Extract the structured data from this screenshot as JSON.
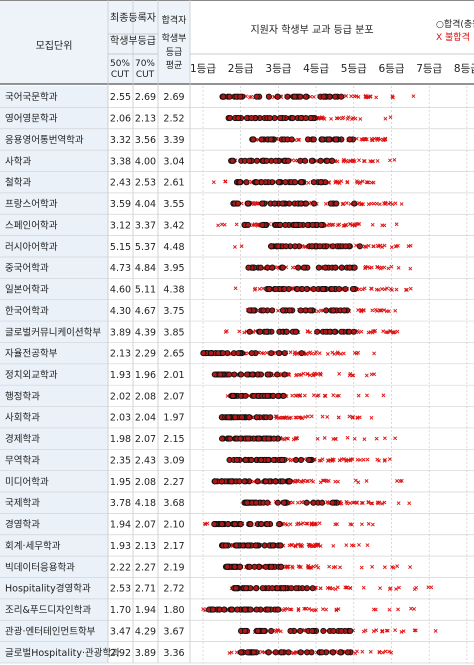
{
  "header": {
    "dept_label": "모집단위",
    "final_reg_label": "최종등록자",
    "final_reg_sub": "학생부등급",
    "cut50": [
      "50%",
      "CUT"
    ],
    "cut70": [
      "70%",
      "CUT"
    ],
    "pass_avg": [
      "합격자",
      "학생부",
      "등급",
      "평균"
    ],
    "dist_title": "지원자 학생부 교과 등급 분포",
    "legend_pass": "○합격(충원",
    "legend_fail": "X 불합격"
  },
  "chart_data": {
    "type": "scatter",
    "title": "지원자 학생부 교과 등급 분포",
    "x_ticks": [
      "1등급",
      "2등급",
      "3등급",
      "4등급",
      "5등급",
      "6등급",
      "7등급",
      "8등급"
    ],
    "xlim": [
      0.8,
      8.1
    ],
    "colors": {
      "pass": "#111111",
      "fail": "#e01010",
      "fill_pass": "#b01818",
      "row_alt": "#eef3f9"
    },
    "rows": [
      {
        "dept": "국어국문학과",
        "cut50": "2.55",
        "cut70": "2.69",
        "avg": "2.69",
        "pass_range": [
          1.5,
          4.7
        ],
        "fail_range": [
          1.7,
          6.6
        ]
      },
      {
        "dept": "영어영문학과",
        "cut50": "2.06",
        "cut70": "2.13",
        "avg": "2.52",
        "pass_range": [
          1.6,
          4.0
        ],
        "fail_range": [
          1.7,
          6.0
        ]
      },
      {
        "dept": "응용영어통번역학과",
        "cut50": "3.32",
        "cut70": "3.56",
        "avg": "3.39",
        "pass_range": [
          2.3,
          5.0
        ],
        "fail_range": [
          2.4,
          6.4
        ]
      },
      {
        "dept": "사학과",
        "cut50": "3.38",
        "cut70": "4.00",
        "avg": "3.04",
        "pass_range": [
          1.7,
          4.5
        ],
        "fail_range": [
          1.8,
          6.1
        ]
      },
      {
        "dept": "철학과",
        "cut50": "2.43",
        "cut70": "2.53",
        "avg": "2.61",
        "pass_range": [
          1.9,
          4.4
        ],
        "fail_range": [
          1.0,
          5.9
        ]
      },
      {
        "dept": "프랑스어학과",
        "cut50": "3.59",
        "cut70": "4.04",
        "avg": "3.55",
        "pass_range": [
          1.8,
          5.1
        ],
        "fail_range": [
          2.3,
          6.5
        ]
      },
      {
        "dept": "스페인어학과",
        "cut50": "3.12",
        "cut70": "3.37",
        "avg": "3.42",
        "pass_range": [
          2.1,
          4.3
        ],
        "fail_range": [
          1.4,
          6.4
        ]
      },
      {
        "dept": "러시아어학과",
        "cut50": "5.15",
        "cut70": "5.37",
        "avg": "4.48",
        "pass_range": [
          2.8,
          5.2
        ],
        "fail_range": [
          1.5,
          6.6
        ]
      },
      {
        "dept": "중국어학과",
        "cut50": "4.73",
        "cut70": "4.84",
        "avg": "3.95",
        "pass_range": [
          2.2,
          5.1
        ],
        "fail_range": [
          2.2,
          6.5
        ]
      },
      {
        "dept": "일본어학과",
        "cut50": "4.60",
        "cut70": "5.11",
        "avg": "4.38",
        "pass_range": [
          2.7,
          5.1
        ],
        "fail_range": [
          1.7,
          6.6
        ]
      },
      {
        "dept": "한국어학과",
        "cut50": "4.30",
        "cut70": "4.67",
        "avg": "3.75",
        "pass_range": [
          2.2,
          4.9
        ],
        "fail_range": [
          1.8,
          6.6
        ]
      },
      {
        "dept": "글로벌커뮤니케이션학부",
        "cut50": "3.89",
        "cut70": "4.39",
        "avg": "3.85",
        "pass_range": [
          2.2,
          5.1
        ],
        "fail_range": [
          1.6,
          6.7
        ]
      },
      {
        "dept": "자율전공학부",
        "cut50": "2.13",
        "cut70": "2.29",
        "avg": "2.65",
        "pass_range": [
          1.0,
          3.7
        ],
        "fail_range": [
          1.2,
          5.6
        ]
      },
      {
        "dept": "정치외교학과",
        "cut50": "1.93",
        "cut70": "1.96",
        "avg": "2.01",
        "pass_range": [
          1.3,
          3.2
        ],
        "fail_range": [
          1.5,
          5.7
        ]
      },
      {
        "dept": "행정학과",
        "cut50": "2.02",
        "cut70": "2.08",
        "avg": "2.07",
        "pass_range": [
          1.6,
          3.3
        ],
        "fail_range": [
          1.8,
          5.8
        ]
      },
      {
        "dept": "사회학과",
        "cut50": "2.03",
        "cut70": "2.04",
        "avg": "1.97",
        "pass_range": [
          1.5,
          2.8
        ],
        "fail_range": [
          1.7,
          5.5
        ]
      },
      {
        "dept": "경제학과",
        "cut50": "1.98",
        "cut70": "2.07",
        "avg": "2.15",
        "pass_range": [
          1.5,
          3.1
        ],
        "fail_range": [
          1.7,
          6.1
        ]
      },
      {
        "dept": "무역학과",
        "cut50": "2.35",
        "cut70": "2.43",
        "avg": "3.09",
        "pass_range": [
          1.7,
          4.0
        ],
        "fail_range": [
          1.8,
          6.1
        ]
      },
      {
        "dept": "미디어학과",
        "cut50": "1.95",
        "cut70": "2.08",
        "avg": "2.27",
        "pass_range": [
          1.3,
          3.4
        ],
        "fail_range": [
          1.2,
          6.4
        ]
      },
      {
        "dept": "국제학과",
        "cut50": "3.78",
        "cut70": "4.18",
        "avg": "3.68",
        "pass_range": [
          2.1,
          5.0
        ],
        "fail_range": [
          2.0,
          6.5
        ]
      },
      {
        "dept": "경영학과",
        "cut50": "1.94",
        "cut70": "2.07",
        "avg": "2.10",
        "pass_range": [
          1.3,
          3.2
        ],
        "fail_range": [
          1.0,
          5.8
        ]
      },
      {
        "dept": "회계·세무학과",
        "cut50": "1.93",
        "cut70": "2.13",
        "avg": "2.17",
        "pass_range": [
          1.5,
          3.1
        ],
        "fail_range": [
          1.7,
          5.6
        ]
      },
      {
        "dept": "빅데이터응용학과",
        "cut50": "2.22",
        "cut70": "2.27",
        "avg": "2.19",
        "pass_range": [
          1.6,
          3.1
        ],
        "fail_range": [
          1.7,
          6.5
        ]
      },
      {
        "dept": "Hospitality경영학과",
        "cut50": "2.53",
        "cut70": "2.71",
        "avg": "2.72",
        "pass_range": [
          1.8,
          4.1
        ],
        "fail_range": [
          1.3,
          7.2
        ]
      },
      {
        "dept": "조리&푸드디자인학과",
        "cut50": "1.70",
        "cut70": "1.94",
        "avg": "1.80",
        "pass_range": [
          1.0,
          3.0
        ],
        "fail_range": [
          1.0,
          6.9
        ]
      },
      {
        "dept": "관광·엔터테인먼트학부",
        "cut50": "3.47",
        "cut70": "4.29",
        "avg": "3.67",
        "pass_range": [
          2.0,
          5.0
        ],
        "fail_range": [
          1.3,
          7.2
        ]
      },
      {
        "dept": "글로벌Hospitality·관광학과",
        "cut50": "2.92",
        "cut70": "3.89",
        "avg": "3.36",
        "pass_range": [
          2.0,
          5.0
        ],
        "fail_range": [
          1.7,
          7.2
        ]
      }
    ]
  }
}
